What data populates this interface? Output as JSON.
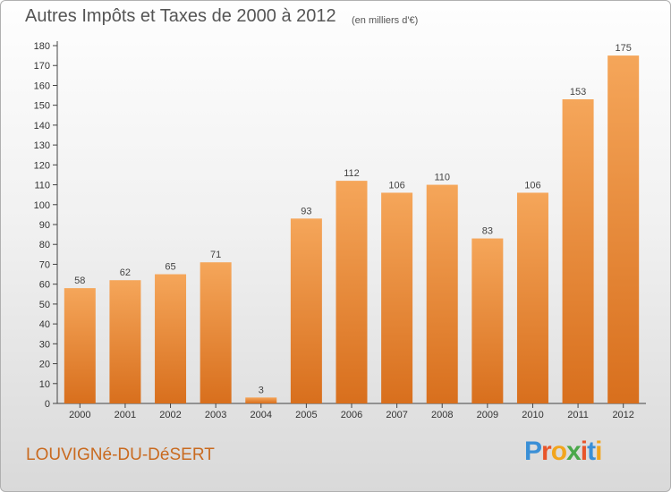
{
  "title": "Autres Impôts et Taxes de 2000 à 2012",
  "subtitle": "(en milliers d'€)",
  "town": "LOUVIGNé-DU-DéSERT",
  "brand": {
    "letters": [
      "P",
      "r",
      "o",
      "x",
      "i",
      "t",
      "i"
    ],
    "colors": [
      "#3a8fd6",
      "#e8552a",
      "#f2a51d",
      "#4aa84a",
      "#e8552a",
      "#3a8fd6",
      "#f2a51d"
    ]
  },
  "colors": {
    "bar_top": "#f5a65a",
    "bar_bottom": "#d86f1d",
    "accent": "#c96a1f"
  },
  "chart_data": {
    "type": "bar",
    "categories": [
      "2000",
      "2001",
      "2002",
      "2003",
      "2004",
      "2005",
      "2006",
      "2007",
      "2008",
      "2009",
      "2010",
      "2011",
      "2012"
    ],
    "values": [
      58,
      62,
      65,
      71,
      3,
      93,
      112,
      106,
      110,
      83,
      106,
      153,
      175
    ],
    "ylim": [
      0,
      180
    ],
    "yticks": [
      0,
      10,
      20,
      30,
      40,
      50,
      60,
      70,
      80,
      90,
      100,
      110,
      120,
      130,
      140,
      150,
      160,
      170,
      180
    ],
    "grid": false
  }
}
